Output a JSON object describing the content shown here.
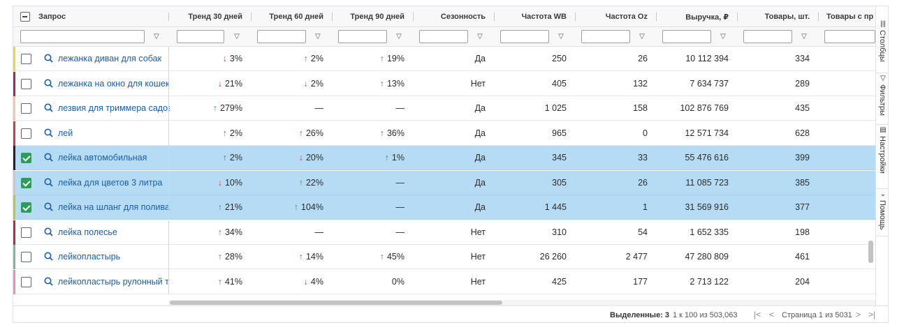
{
  "columns": {
    "query": "Запрос",
    "trend30": "Тренд 30 дней",
    "trend60": "Тренд 60 дней",
    "trend90": "Тренд 90 дней",
    "season": "Сезонность",
    "freq_wb": "Частота WB",
    "freq_oz": "Частота Oz",
    "revenue": "Выручка, ₽",
    "goods": "Товары, шт.",
    "goods2": "Товары с пр"
  },
  "rows": [
    {
      "query": "лежанка диван для собак",
      "t30": "3%",
      "t30d": "down",
      "t60": "2%",
      "t60d": "up",
      "t90": "19%",
      "t90d": "up",
      "season": "Да",
      "wb": "250",
      "oz": "26",
      "rev": "10 112 394",
      "goods": "334",
      "selected": false,
      "bar": "#f5d33c"
    },
    {
      "query": "лежанка на окно для кошек",
      "t30": "21%",
      "t30d": "down",
      "t60": "2%",
      "t60d": "down",
      "t90": "13%",
      "t90d": "up",
      "season": "Нет",
      "wb": "405",
      "oz": "132",
      "rev": "7 634 737",
      "goods": "289",
      "selected": false,
      "bar": "#b4235a"
    },
    {
      "query": "лезвия для триммера садов",
      "t30": "279%",
      "t30d": "up",
      "t60": "—",
      "t60d": "",
      "t90": "—",
      "t90d": "",
      "season": "Да",
      "wb": "1 025",
      "oz": "158",
      "rev": "102 876 769",
      "goods": "435",
      "selected": false,
      "bar": "#f6c89a"
    },
    {
      "query": "лей",
      "t30": "2%",
      "t30d": "up",
      "t60": "26%",
      "t60d": "up",
      "t90": "36%",
      "t90d": "up",
      "season": "Да",
      "wb": "965",
      "oz": "0",
      "rev": "12 571 734",
      "goods": "628",
      "selected": false,
      "bar": "#d43a4a"
    },
    {
      "query": "лейка автомобильная",
      "t30": "2%",
      "t30d": "up",
      "t60": "20%",
      "t60d": "down",
      "t90": "1%",
      "t90d": "up",
      "season": "Да",
      "wb": "345",
      "oz": "33",
      "rev": "55 476 616",
      "goods": "399",
      "selected": true,
      "bar": "#222222"
    },
    {
      "query": "лейка для цветов 3 литра",
      "t30": "10%",
      "t30d": "down",
      "t60": "22%",
      "t60d": "up",
      "t90": "—",
      "t90d": "",
      "season": "Да",
      "wb": "305",
      "oz": "26",
      "rev": "11 085 723",
      "goods": "385",
      "selected": true,
      "bar": "#c8c8c8"
    },
    {
      "query": "лейка на шланг для полива",
      "t30": "21%",
      "t30d": "up",
      "t60": "104%",
      "t60d": "up",
      "t90": "—",
      "t90d": "",
      "season": "Да",
      "wb": "1 445",
      "oz": "1",
      "rev": "31 569 916",
      "goods": "377",
      "selected": true,
      "bar": "#b5c93a"
    },
    {
      "query": "лейка полесье",
      "t30": "34%",
      "t30d": "up",
      "t60": "—",
      "t60d": "",
      "t90": "—",
      "t90d": "",
      "season": "Нет",
      "wb": "310",
      "oz": "54",
      "rev": "1 652 335",
      "goods": "198",
      "selected": false,
      "bar": "#c4264a"
    },
    {
      "query": "лейкопластырь",
      "t30": "28%",
      "t30d": "up",
      "t60": "14%",
      "t60d": "up",
      "t90": "45%",
      "t90d": "up",
      "season": "Нет",
      "wb": "26 260",
      "oz": "2 477",
      "rev": "47 280 809",
      "goods": "461",
      "selected": false,
      "bar": "#7fb89a"
    },
    {
      "query": "лейкопластырь рулонный т",
      "t30": "41%",
      "t30d": "up",
      "t60": "4%",
      "t60d": "down",
      "t90": "0%",
      "t90d": "",
      "season": "Нет",
      "wb": "425",
      "oz": "177",
      "rev": "2 713 122",
      "goods": "204",
      "selected": false,
      "bar": "#f08cc0"
    }
  ],
  "footer": {
    "selected_label": "Выделенные: 3",
    "range": "1 к 100 из 503,063",
    "page": "Страница 1 из 5031"
  },
  "sidebar": {
    "columns": "Столбцы",
    "filters": "Фильтры",
    "settings": "Настройки",
    "help": "Помощь"
  },
  "colors": {
    "accent_up": "#2e9c5a",
    "accent_down": "#d93a32",
    "link": "#1a5fa8",
    "selected_row": "#b6dcf5"
  }
}
